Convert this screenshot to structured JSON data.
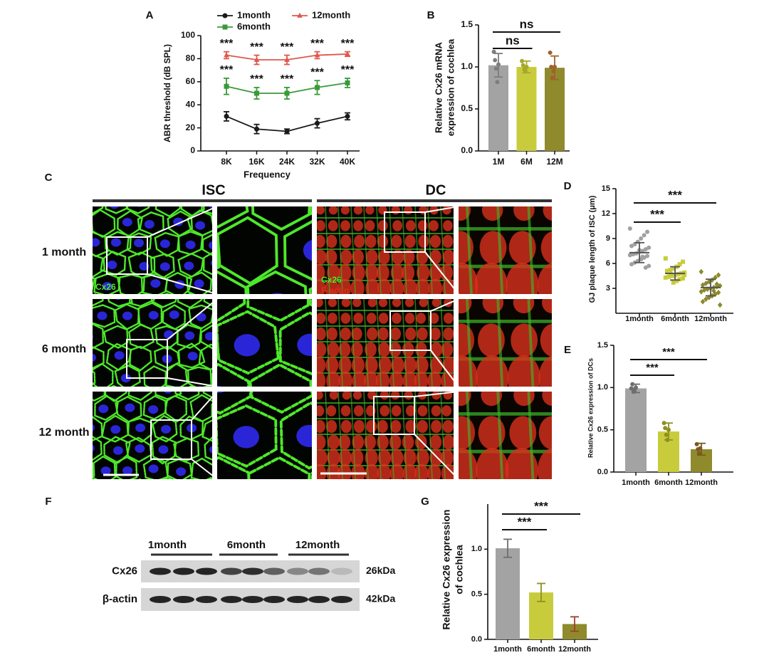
{
  "panel_labels": [
    "A",
    "B",
    "C",
    "D",
    "E",
    "F",
    "G"
  ],
  "panel_C": {
    "columns": [
      "ISC",
      "DC"
    ],
    "rows": [
      "1 month",
      "6 month",
      "12 month"
    ],
    "isc_stain": "Cx26",
    "dc_stains": [
      "Cx26",
      "F-actin"
    ]
  },
  "panel_F": {
    "groups": [
      "1month",
      "6month",
      "12month"
    ],
    "bands": [
      {
        "label": "Cx26",
        "size": "26kDa"
      },
      {
        "label": "β-actin",
        "size": "42kDa"
      }
    ]
  },
  "chart_data": [
    {
      "type": "line",
      "x_label": "Frequency",
      "y_label": "ABR threshold (dB SPL)",
      "categories": [
        "8K",
        "16K",
        "24K",
        "32K",
        "40K"
      ],
      "ylim": [
        0,
        100
      ],
      "yticks": [
        0,
        20,
        40,
        60,
        80,
        100
      ],
      "series": [
        {
          "name": "1month",
          "color": "#1a1a1a",
          "marker": "circle",
          "values": [
            30,
            19,
            17,
            24,
            30
          ],
          "errors": [
            4,
            4,
            2,
            4,
            3
          ]
        },
        {
          "name": "6month",
          "color": "#3a9a3a",
          "marker": "square",
          "values": [
            56,
            50,
            50,
            55,
            59
          ],
          "errors": [
            7,
            5,
            5,
            6,
            4
          ],
          "significance": [
            "***",
            "***",
            "***",
            "***",
            "***"
          ]
        },
        {
          "name": "12month",
          "color": "#e0574c",
          "marker": "triangle",
          "values": [
            83,
            79,
            79,
            83,
            84
          ],
          "errors": [
            3,
            4,
            4,
            3,
            2
          ],
          "significance": [
            "***",
            "***",
            "***",
            "***",
            "***"
          ]
        }
      ]
    },
    {
      "type": "bar",
      "y_label": [
        "Relative Cx26 mRNA",
        "expression of cochlea"
      ],
      "categories": [
        "1M",
        "6M",
        "12M"
      ],
      "colors": [
        "#a3a3a3",
        "#c8cc3c",
        "#8f8a2c"
      ],
      "point_colors": [
        "#7d7d7d",
        "#a6a82a",
        "#a0602c"
      ],
      "values": [
        1.02,
        1.0,
        0.99
      ],
      "errors": [
        0.14,
        0.07,
        0.14
      ],
      "points": [
        [
          1.18,
          1.08,
          0.98,
          0.82,
          1.03
        ],
        [
          1.07,
          1.02,
          0.97,
          0.95,
          1.0
        ],
        [
          1.17,
          1.0,
          0.87,
          0.95,
          1.0
        ]
      ],
      "ylim": [
        0,
        1.5
      ],
      "yticks": [
        {
          "value": 0,
          "label": "0.0"
        },
        0.5,
        {
          "value": 1,
          "label": "1.0"
        },
        1.5
      ],
      "comparisons": [
        {
          "label": "ns"
        },
        {
          "label": "ns"
        }
      ]
    },
    {
      "type": "strip",
      "y_label": "GJ plaque length of ISC (μm)",
      "categories": [
        "1month",
        "6month",
        "12month"
      ],
      "colors": [
        "#a0a0a0",
        "#c8cc3a",
        "#8c8a2a"
      ],
      "markers": [
        "circle",
        "square",
        "diamond"
      ],
      "means": [
        7.3,
        4.8,
        3.1
      ],
      "errors": [
        1.2,
        0.8,
        1.0
      ],
      "points": [
        [
          10.2,
          9.8,
          9.4,
          9.0,
          8.6,
          8.3,
          8.1,
          7.9,
          7.7,
          7.5,
          7.4,
          7.2,
          7.1,
          7.0,
          6.9,
          6.7,
          6.5,
          6.3,
          6.1,
          5.9,
          5.7,
          5.5,
          6.8,
          7.6
        ],
        [
          6.6,
          6.2,
          5.9,
          5.6,
          5.4,
          5.2,
          5.0,
          4.9,
          4.8,
          4.7,
          4.6,
          4.5,
          4.4,
          4.3,
          4.2,
          4.1,
          3.9,
          3.7,
          4.9,
          5.1,
          4.6
        ],
        [
          5.0,
          4.6,
          4.3,
          4.0,
          3.8,
          3.6,
          3.4,
          3.3,
          3.2,
          3.1,
          3.0,
          2.9,
          2.8,
          2.6,
          2.5,
          2.3,
          2.1,
          1.9,
          1.7,
          1.4,
          1.0,
          3.5,
          2.7
        ]
      ],
      "ylim": [
        0,
        15
      ],
      "yticks": [
        3,
        6,
        9,
        12,
        15
      ],
      "comparisons": [
        {
          "label": "***"
        },
        {
          "label": "***"
        }
      ]
    },
    {
      "type": "bar",
      "y_label": "Relative Cx26 expression of DCs",
      "categories": [
        "1month",
        "6month",
        "12month"
      ],
      "colors": [
        "#a3a3a3",
        "#c8cc3c",
        "#8f8a2c"
      ],
      "point_colors": [
        "#6e6e6e",
        "#8e9020",
        "#7a5a20"
      ],
      "values": [
        0.99,
        0.48,
        0.27
      ],
      "errors": [
        0.05,
        0.1,
        0.07
      ],
      "points": [
        [
          0.99,
          1.04,
          0.95,
          0.98,
          1.0
        ],
        [
          0.58,
          0.52,
          0.44,
          0.38,
          0.5
        ],
        [
          0.33,
          0.27,
          0.22,
          0.28
        ]
      ],
      "ylim": [
        0,
        1.5
      ],
      "yticks": [
        {
          "value": 0,
          "label": "0.0"
        },
        0.5,
        {
          "value": 1,
          "label": "1.0"
        },
        1.5
      ],
      "comparisons": [
        {
          "label": "***"
        },
        {
          "label": "***"
        }
      ]
    },
    {
      "type": "bar",
      "y_label": [
        "Relative Cx26 expression",
        "of cochlea"
      ],
      "categories": [
        "1month",
        "6month",
        "12month"
      ],
      "colors": [
        "#a3a3a3",
        "#c8cc3c",
        "#8f8a2c"
      ],
      "point_colors": [
        "#6e6e6e",
        "#8e9020",
        "#a0402c"
      ],
      "values": [
        1.01,
        0.52,
        0.17
      ],
      "errors": [
        0.1,
        0.1,
        0.08
      ],
      "ylim": [
        0,
        1.5
      ],
      "yticks": [
        {
          "value": 0,
          "label": "0.0"
        },
        0.5,
        {
          "value": 1,
          "label": "1.0"
        }
      ],
      "comparisons": [
        {
          "label": "***"
        },
        {
          "label": "***"
        }
      ]
    }
  ]
}
